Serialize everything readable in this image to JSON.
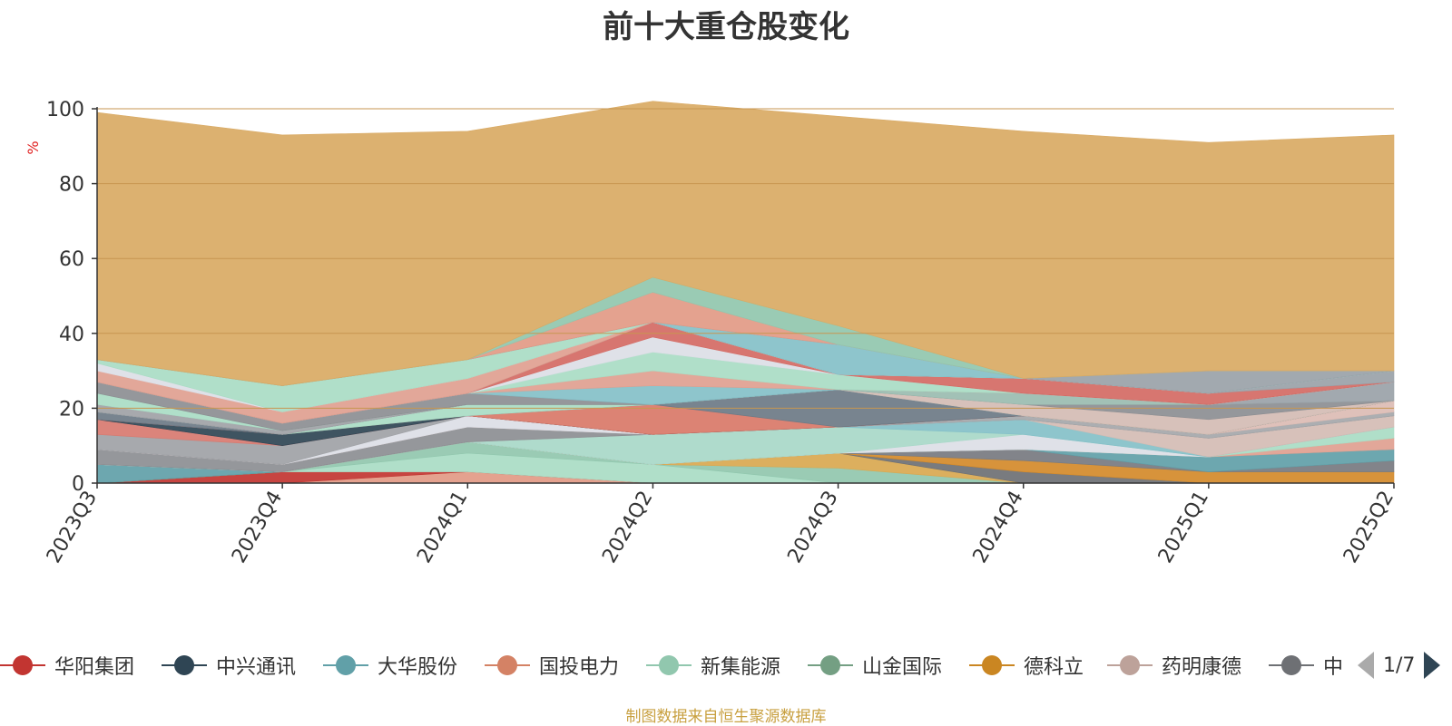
{
  "colors": {
    "top_area": "#d9aa64",
    "axis": "#333333",
    "grid": "#c79650",
    "unit": "#e02020",
    "source": "#c8a040"
  },
  "chart_data": {
    "type": "area",
    "stacked": true,
    "title": "前十大重仓股变化",
    "unit": "%",
    "xlabel": "",
    "ylabel": "",
    "ylim": [
      0,
      100
    ],
    "yticks": [
      0,
      20,
      40,
      60,
      80,
      100
    ],
    "categories": [
      "2023Q3",
      "2023Q4",
      "2024Q1",
      "2024Q2",
      "2024Q3",
      "2024Q4",
      "2025Q1",
      "2025Q2"
    ],
    "grid": true,
    "legend_position": "bottom",
    "series": [
      {
        "color": "#e29a86",
        "values": [
          0,
          0,
          3,
          0,
          0,
          0,
          0,
          0
        ]
      },
      {
        "color": "#c23531",
        "values": [
          0,
          3,
          0,
          0,
          0,
          0,
          0,
          0
        ]
      },
      {
        "color": "#a9dcc4",
        "values": [
          0,
          0,
          5,
          5,
          0,
          0,
          0,
          0
        ]
      },
      {
        "color": "#91c7ae",
        "values": [
          0,
          0,
          3,
          0,
          4,
          0,
          0,
          0
        ]
      },
      {
        "color": "#d9a850",
        "values": [
          0,
          0,
          0,
          0,
          4,
          0,
          0,
          0
        ]
      },
      {
        "color": "#6e7074",
        "values": [
          0,
          0,
          0,
          0,
          0,
          3,
          0,
          0
        ]
      },
      {
        "color": "#d48a2a",
        "values": [
          0,
          0,
          0,
          0,
          0,
          3,
          3,
          3
        ]
      },
      {
        "color": "#777a80",
        "values": [
          0,
          0,
          0,
          0,
          0,
          3,
          0,
          3
        ]
      },
      {
        "color": "#61a0a8",
        "values": [
          5,
          0,
          0,
          0,
          0,
          0,
          4,
          3
        ]
      },
      {
        "color": "#e0a090",
        "values": [
          0,
          0,
          0,
          0,
          0,
          0,
          0,
          3
        ]
      },
      {
        "color": "#a9dcc4",
        "values": [
          0,
          0,
          0,
          0,
          0,
          0,
          0,
          3
        ]
      },
      {
        "color": "#dcdee6",
        "values": [
          0,
          0,
          0,
          0,
          0,
          4,
          0,
          0
        ]
      },
      {
        "color": "#a8d8c8",
        "values": [
          0,
          0,
          0,
          8,
          7,
          0,
          0,
          0
        ]
      },
      {
        "color": "#84c0c8",
        "values": [
          0,
          0,
          0,
          0,
          0,
          4,
          0,
          0
        ]
      },
      {
        "color": "#d4bcb4",
        "values": [
          0,
          0,
          0,
          0,
          0,
          0,
          5,
          3
        ]
      },
      {
        "color": "#8c8e92",
        "values": [
          4,
          2,
          4,
          0,
          0,
          0,
          0,
          0
        ]
      },
      {
        "color": "#a5a7aa",
        "values": [
          0,
          0,
          0,
          0,
          0,
          1,
          1,
          1
        ]
      },
      {
        "color": "#dcbcb4",
        "values": [
          0,
          0,
          0,
          0,
          0,
          0,
          0,
          3
        ]
      },
      {
        "color": "#dcdee6",
        "values": [
          0,
          0,
          3,
          0,
          0,
          0,
          0,
          0
        ]
      },
      {
        "color": "#a0a2a6",
        "values": [
          4,
          5,
          0,
          0,
          0,
          0,
          0,
          0
        ]
      },
      {
        "color": "#d87a70",
        "values": [
          4,
          0,
          0,
          0,
          0,
          0,
          0,
          0
        ]
      },
      {
        "color": "#2f4554",
        "values": [
          0,
          3,
          0,
          0,
          0,
          0,
          0,
          0
        ]
      },
      {
        "color": "#d97868",
        "values": [
          0,
          0,
          0,
          8,
          0,
          0,
          0,
          0
        ]
      },
      {
        "color": "#6c7a86",
        "values": [
          2,
          0,
          0,
          0,
          10,
          0,
          0,
          0
        ]
      },
      {
        "color": "#d9a850",
        "values": [
          0,
          0,
          0,
          0,
          0,
          0,
          0,
          0
        ]
      },
      {
        "color": "#a9dcc4",
        "values": [
          0,
          0,
          3,
          0,
          0,
          0,
          0,
          0
        ]
      },
      {
        "color": "#8ad0c0",
        "values": [
          0,
          0,
          0,
          0,
          0,
          0,
          0,
          0
        ]
      },
      {
        "color": "#d4bcb4",
        "values": [
          0,
          0,
          0,
          0,
          0,
          3,
          4,
          0
        ]
      },
      {
        "color": "#84c0c8",
        "values": [
          0,
          0,
          0,
          0,
          0,
          0,
          0,
          0
        ]
      },
      {
        "color": "#8c8e92",
        "values": [
          0,
          0,
          0,
          0,
          0,
          0,
          4,
          0
        ]
      },
      {
        "color": "#9abcb0",
        "values": [
          0,
          0,
          0,
          0,
          0,
          3,
          0,
          0
        ]
      },
      {
        "color": "#9aa2a8",
        "values": [
          0,
          0,
          0,
          0,
          0,
          0,
          0,
          5
        ]
      },
      {
        "color": "#a0a2a6",
        "values": [
          2,
          1,
          0,
          0,
          0,
          0,
          0,
          0
        ]
      },
      {
        "color": "#a9dcc4",
        "values": [
          3,
          0,
          0,
          0,
          0,
          0,
          0,
          0
        ]
      },
      {
        "color": "#8c8e92",
        "values": [
          3,
          2,
          3,
          0,
          0,
          0,
          0,
          0
        ]
      },
      {
        "color": "#84c0c8",
        "values": [
          0,
          0,
          0,
          5,
          0,
          0,
          0,
          0
        ]
      },
      {
        "color": "#e0a090",
        "values": [
          0,
          0,
          0,
          4,
          0,
          0,
          0,
          0
        ]
      },
      {
        "color": "#a9dcc4",
        "values": [
          0,
          0,
          0,
          5,
          4,
          0,
          0,
          0
        ]
      },
      {
        "color": "#dcdee6",
        "values": [
          0,
          0,
          0,
          4,
          0,
          0,
          0,
          0
        ]
      },
      {
        "color": "#d46a64",
        "values": [
          0,
          0,
          0,
          4,
          0,
          4,
          3,
          0
        ]
      },
      {
        "color": "#9aa2a8",
        "values": [
          0,
          0,
          0,
          0,
          0,
          0,
          0,
          3
        ]
      },
      {
        "color": "#e0a090",
        "values": [
          3,
          3,
          4,
          0,
          0,
          0,
          0,
          0
        ]
      },
      {
        "color": "#dcdee6",
        "values": [
          2,
          0,
          0,
          0,
          0,
          0,
          0,
          0
        ]
      },
      {
        "color": "#a9dcc4",
        "values": [
          1,
          7,
          5,
          0,
          0,
          0,
          0,
          0
        ]
      },
      {
        "color": "#84c0c8",
        "values": [
          0,
          0,
          0,
          0,
          8,
          0,
          0,
          0
        ]
      },
      {
        "color": "#9aa2a8",
        "values": [
          0,
          0,
          0,
          0,
          0,
          0,
          6,
          0
        ]
      },
      {
        "color": "#e29a86",
        "values": [
          0,
          0,
          0,
          8,
          0,
          0,
          0,
          0
        ]
      },
      {
        "color": "#91c7ae",
        "values": [
          0,
          0,
          0,
          4,
          5,
          0,
          0,
          0
        ]
      },
      {
        "color": "#d9aa64",
        "values": [
          66,
          67,
          61,
          47,
          56,
          66,
          61,
          63
        ]
      }
    ]
  },
  "legend": {
    "items": [
      {
        "label": "华阳集团",
        "color": "#c23531"
      },
      {
        "label": "中兴通讯",
        "color": "#2f4554"
      },
      {
        "label": "大华股份",
        "color": "#61a0a8"
      },
      {
        "label": "国投电力",
        "color": "#d48265"
      },
      {
        "label": "新集能源",
        "color": "#91c7ae"
      },
      {
        "label": "山金国际",
        "color": "#749f83"
      },
      {
        "label": "德科立",
        "color": "#ca8622"
      },
      {
        "label": "药明康德",
        "color": "#bda29a"
      },
      {
        "label": "中兴",
        "color": "#6e7074"
      }
    ],
    "page_indicator": "1/7"
  },
  "source_note": "制图数据来自恒生聚源数据库"
}
